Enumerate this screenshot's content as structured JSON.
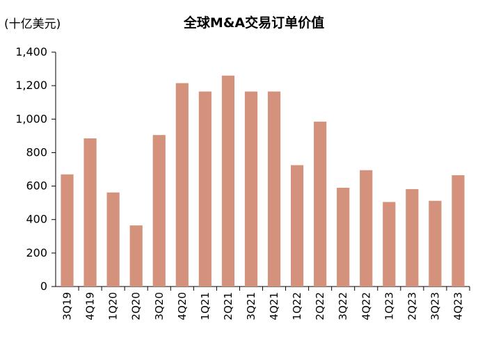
{
  "unit_label": "(十亿美元)",
  "chart_data": {
    "type": "bar",
    "title": "全球M&A交易订单价值",
    "xlabel": "",
    "ylabel": "(十亿美元)",
    "ylim": [
      0,
      1400
    ],
    "yticks": [
      0,
      200,
      400,
      600,
      800,
      1000,
      1200,
      1400
    ],
    "ytick_labels": [
      "0",
      "200",
      "400",
      "600",
      "800",
      "1,000",
      "1,200",
      "1,400"
    ],
    "categories": [
      "3Q19",
      "4Q19",
      "1Q20",
      "2Q20",
      "3Q20",
      "4Q20",
      "1Q21",
      "2Q21",
      "3Q21",
      "4Q21",
      "1Q22",
      "2Q22",
      "3Q22",
      "4Q22",
      "1Q23",
      "2Q23",
      "3Q23",
      "4Q23"
    ],
    "values": [
      670,
      885,
      562,
      365,
      905,
      1215,
      1165,
      1260,
      1165,
      1165,
      725,
      985,
      590,
      695,
      505,
      582,
      512,
      665
    ],
    "bar_color": "#D4917B",
    "grid": false,
    "legend": "none"
  }
}
